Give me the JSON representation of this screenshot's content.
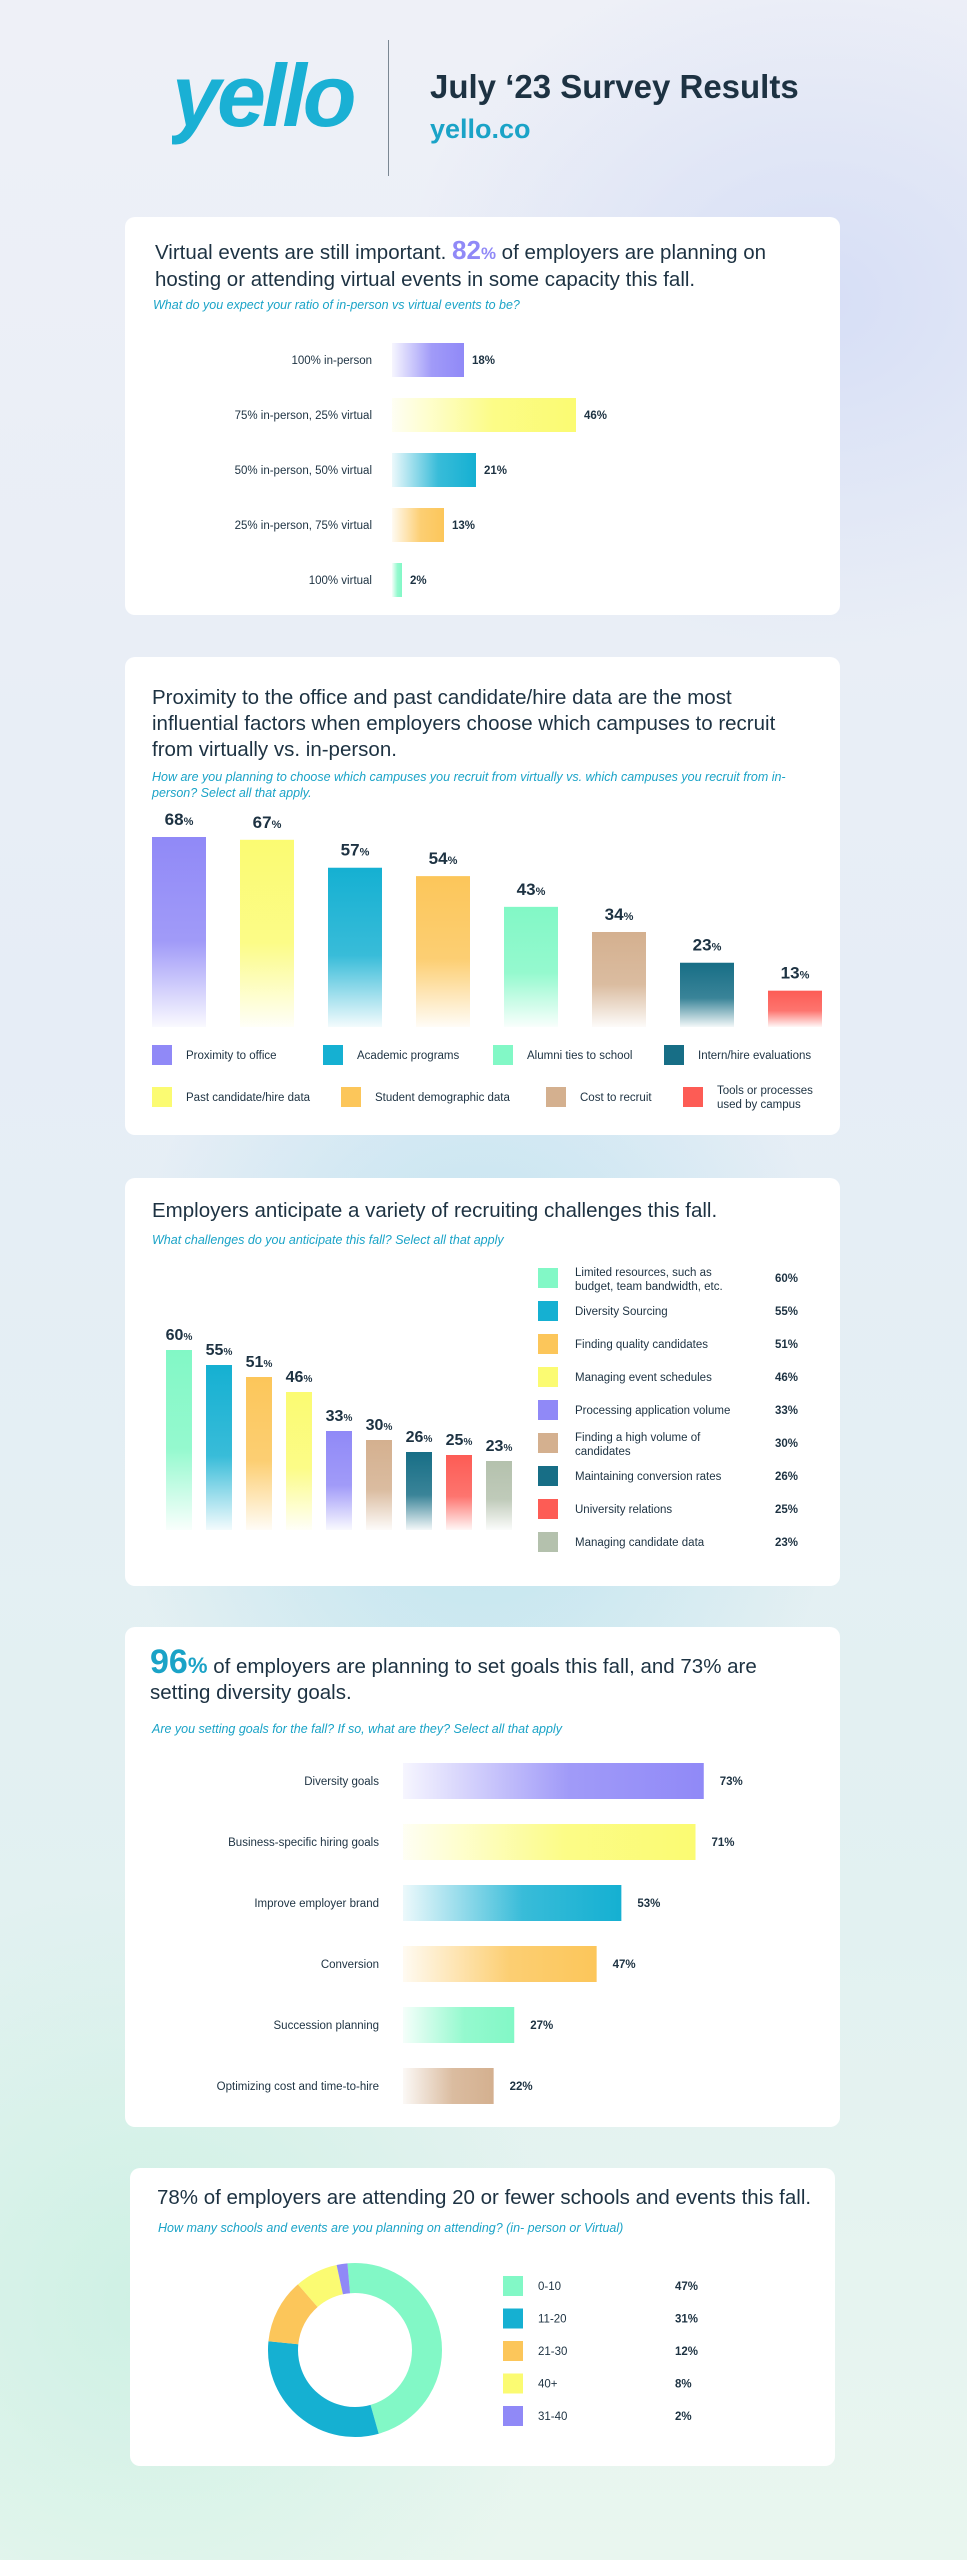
{
  "header": {
    "logo_text": "yello",
    "title": "July ‘23 Survey Results",
    "site": "yello.co"
  },
  "colors": {
    "purple": "#9089f7",
    "yellow": "#fbfb72",
    "cyan": "#15b0d2",
    "orange": "#fcc65a",
    "mint": "#82f8c6",
    "teal": "#176e86",
    "tan": "#d4b08f",
    "red": "#fd5c55",
    "sage": "#b4c1ad",
    "navy": "#1d3242",
    "brand_blue": "#1aa3c7"
  },
  "sections": {
    "s1": {
      "lead": "Virtual events are still important.",
      "big": "82",
      "big_unit": "%",
      "rest": "of employers are planning on hosting or attending virtual events in some capacity this fall.",
      "question": "What do you expect your ratio of in-person vs virtual events to be?"
    },
    "s2": {
      "headline": "Proximity to the office and past candidate/hire data are the most influential factors when employers choose which campuses to recruit from virtually vs. in-person.",
      "question": "How are you planning to choose which campuses you recruit from virtually vs. which campuses you recruit from in-person? Select all that apply."
    },
    "s3": {
      "headline": "Employers anticipate a variety of recruiting challenges this fall.",
      "question": "What challenges do you anticipate this fall? Select all that apply"
    },
    "s4": {
      "big": "96",
      "big_unit": "%",
      "rest": "of employers are planning to set goals this fall, and 73% are setting diversity goals.",
      "question": "Are you setting goals for the fall? If so, what are they? Select all that apply"
    },
    "s5": {
      "headline": "78% of employers are attending 20 or fewer schools and events this fall.",
      "question": "How many schools and events are you planning on attending? (in- person or Virtual)"
    }
  },
  "chart_data": [
    {
      "type": "bar",
      "orientation": "horizontal",
      "categories": [
        "100% in-person",
        "75% in-person, 25% virtual",
        "50% in-person, 50% virtual",
        "25% in-person, 75% virtual",
        "100% virtual"
      ],
      "values": [
        18,
        46,
        21,
        13,
        2
      ],
      "labels": [
        "18%",
        "46%",
        "21%",
        "13%",
        "2%"
      ],
      "colors": [
        "purple",
        "yellow",
        "cyan",
        "orange",
        "mint"
      ],
      "unit": "%"
    },
    {
      "type": "bar",
      "orientation": "vertical",
      "categories": [
        "Proximity to office",
        "Past candidate/hire data",
        "Academic programs",
        "Student demographic data",
        "Alumni ties to school",
        "Cost to recruit",
        "Intern/hire evaluations",
        "Tools or processes used by campus"
      ],
      "values": [
        68,
        67,
        57,
        54,
        43,
        34,
        23,
        13
      ],
      "labels": [
        "68",
        "67",
        "57",
        "54",
        "43",
        "34",
        "23",
        "13"
      ],
      "unit": "%",
      "colors": [
        "purple",
        "yellow",
        "cyan",
        "orange",
        "mint",
        "tan",
        "teal",
        "red"
      ],
      "legend": {
        "row1": [
          {
            "label": "Proximity to office",
            "color": "purple"
          },
          {
            "label": "Academic programs",
            "color": "cyan"
          },
          {
            "label": "Alumni ties to school",
            "color": "mint"
          },
          {
            "label": "Intern/hire evaluations",
            "color": "teal"
          }
        ],
        "row2": [
          {
            "label": "Past candidate/hire data",
            "color": "yellow"
          },
          {
            "label": "Student demographic data",
            "color": "orange"
          },
          {
            "label": "Cost to recruit",
            "color": "tan"
          },
          {
            "label": "Tools or processes",
            "label2": "used by campus",
            "color": "red"
          }
        ]
      }
    },
    {
      "type": "bar",
      "orientation": "vertical",
      "categories": [
        "Limited resources, such as budget, team bandwidth, etc.",
        "Diversity Sourcing",
        "Finding quality candidates",
        "Managing event schedules",
        "Processing application volume",
        "Finding a high volume of candidates",
        "Maintaining conversion rates",
        "University relations",
        "Managing candidate data"
      ],
      "values": [
        60,
        55,
        51,
        46,
        33,
        30,
        26,
        25,
        23
      ],
      "labels": [
        "60",
        "55",
        "51",
        "46",
        "33",
        "30",
        "26",
        "25",
        "23"
      ],
      "unit": "%",
      "colors": [
        "mint",
        "cyan",
        "orange",
        "yellow",
        "purple",
        "tan",
        "teal",
        "red",
        "sage"
      ],
      "legend": [
        {
          "label": "Limited resources, such as",
          "label2": "budget, team bandwidth, etc.",
          "value": "60%",
          "color": "mint"
        },
        {
          "label": "Diversity Sourcing",
          "value": "55%",
          "color": "cyan"
        },
        {
          "label": "Finding quality candidates",
          "value": "51%",
          "color": "orange"
        },
        {
          "label": "Managing event schedules",
          "value": "46%",
          "color": "yellow"
        },
        {
          "label": "Processing application volume",
          "value": "33%",
          "color": "purple"
        },
        {
          "label": "Finding a high volume of",
          "label2": "candidates",
          "value": "30%",
          "color": "tan"
        },
        {
          "label": "Maintaining conversion rates",
          "value": "26%",
          "color": "teal"
        },
        {
          "label": "University relations",
          "value": "25%",
          "color": "red"
        },
        {
          "label": "Managing candidate data",
          "value": "23%",
          "color": "sage"
        }
      ]
    },
    {
      "type": "bar",
      "orientation": "horizontal",
      "categories": [
        "Diversity goals",
        "Business-specific hiring goals",
        "Improve employer brand",
        "Conversion",
        "Succession planning",
        "Optimizing cost and time-to-hire"
      ],
      "values": [
        73,
        71,
        53,
        47,
        27,
        22
      ],
      "labels": [
        "73%",
        "71%",
        "53%",
        "47%",
        "27%",
        "22%"
      ],
      "colors": [
        "purple",
        "yellow",
        "cyan",
        "orange",
        "mint",
        "tan"
      ],
      "unit": "%"
    },
    {
      "type": "pie",
      "style": "donut",
      "categories": [
        "0-10",
        "11-20",
        "21-30",
        "40+",
        "31-40"
      ],
      "values": [
        47,
        31,
        12,
        8,
        2
      ],
      "labels": [
        "47%",
        "31%",
        "12%",
        "8%",
        "2%"
      ],
      "colors": [
        "mint",
        "cyan",
        "orange",
        "yellow",
        "purple"
      ],
      "unit": "%"
    }
  ]
}
